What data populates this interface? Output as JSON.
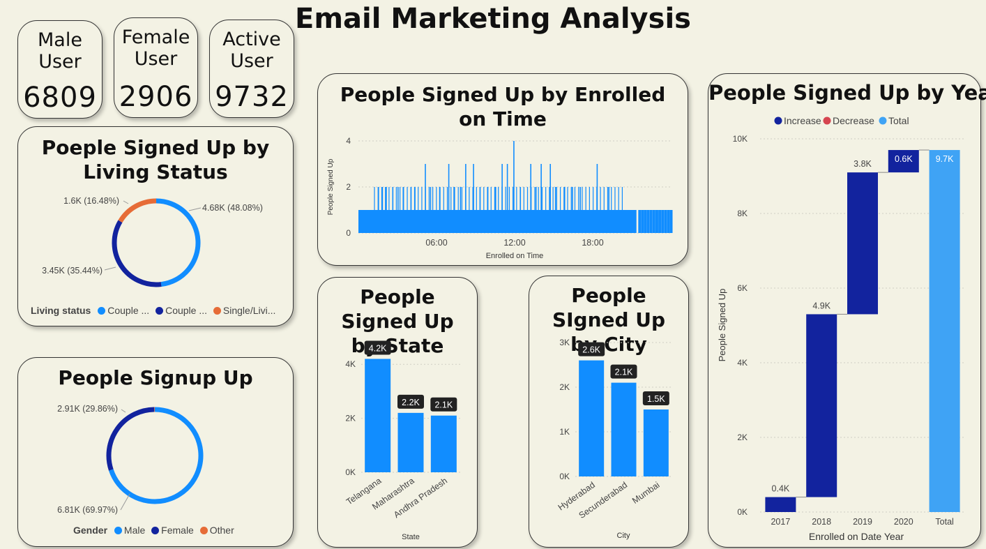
{
  "page": {
    "title": "Email Marketing Analysis"
  },
  "kpis": [
    {
      "label": "Male User",
      "value": "6809"
    },
    {
      "label": "Female User",
      "value": "2906"
    },
    {
      "label": "Active User",
      "value": "9732"
    }
  ],
  "colors": {
    "accent": "#118dff",
    "navy": "#12239e",
    "orange": "#e66c37",
    "red": "#d64550",
    "lightblue": "#3fa3f5",
    "background": "#f3f2e4"
  },
  "chart_data": [
    {
      "id": "living_status",
      "type": "pie",
      "title": "Poeple Signed Up by Living Status",
      "legend_title": "Living status",
      "legend_position": "bottom-left",
      "slices": [
        {
          "name": "Couple ...",
          "color": "#118dff",
          "value": 4680,
          "label": "4.68K (48.08%)",
          "percent": 48.08
        },
        {
          "name": "Couple ...",
          "color": "#12239e",
          "value": 3450,
          "label": "3.45K (35.44%)",
          "percent": 35.44
        },
        {
          "name": "Single/Livi...",
          "color": "#e66c37",
          "value": 1600,
          "label": "1.6K (16.48%)",
          "percent": 16.48
        }
      ]
    },
    {
      "id": "gender",
      "type": "pie",
      "title": "People Signup Up",
      "legend_title": "Gender",
      "legend_position": "bottom-left",
      "slices": [
        {
          "name": "Male",
          "color": "#118dff",
          "value": 6810,
          "label": "6.81K (69.97%)",
          "percent": 69.97
        },
        {
          "name": "Female",
          "color": "#12239e",
          "value": 2910,
          "label": "2.91K (29.86%)",
          "percent": 29.86
        },
        {
          "name": "Other",
          "color": "#e66c37",
          "value": 17,
          "label": "",
          "percent": 0.17
        }
      ]
    },
    {
      "id": "time",
      "type": "bar",
      "title": "People Signed Up by Enrolled on Time",
      "xlabel": "Enrolled on Time",
      "ylabel": "People Signed Up",
      "ylim": [
        0,
        4
      ],
      "yticks": [
        "0",
        "2",
        "4"
      ],
      "xticks": [
        "06:00",
        "12:00",
        "18:00"
      ],
      "x_range_hours": [
        0,
        24
      ],
      "spikes": [
        {
          "hour": 1.5,
          "value": 2
        },
        {
          "hour": 1.8,
          "value": 2
        },
        {
          "hour": 2.1,
          "value": 2
        },
        {
          "hour": 2.6,
          "value": 2
        },
        {
          "hour": 3.0,
          "value": 2
        },
        {
          "hour": 3.4,
          "value": 2
        },
        {
          "hour": 4.0,
          "value": 2
        },
        {
          "hour": 4.3,
          "value": 2
        },
        {
          "hour": 5.1,
          "value": 3
        },
        {
          "hour": 5.5,
          "value": 2
        },
        {
          "hour": 6.2,
          "value": 2
        },
        {
          "hour": 6.9,
          "value": 3
        },
        {
          "hour": 7.3,
          "value": 2
        },
        {
          "hour": 7.8,
          "value": 2
        },
        {
          "hour": 8.2,
          "value": 3
        },
        {
          "hour": 8.8,
          "value": 3
        },
        {
          "hour": 9.3,
          "value": 2
        },
        {
          "hour": 9.9,
          "value": 2
        },
        {
          "hour": 10.5,
          "value": 2
        },
        {
          "hour": 11.0,
          "value": 3
        },
        {
          "hour": 11.4,
          "value": 3
        },
        {
          "hour": 11.9,
          "value": 4
        },
        {
          "hour": 12.4,
          "value": 2
        },
        {
          "hour": 13.2,
          "value": 3
        },
        {
          "hour": 13.6,
          "value": 2
        },
        {
          "hour": 14.0,
          "value": 3
        },
        {
          "hour": 14.7,
          "value": 3
        },
        {
          "hour": 15.1,
          "value": 2
        },
        {
          "hour": 15.8,
          "value": 2
        },
        {
          "hour": 16.4,
          "value": 2
        },
        {
          "hour": 17.0,
          "value": 2
        },
        {
          "hour": 18.3,
          "value": 3
        },
        {
          "hour": 19.2,
          "value": 2
        }
      ]
    },
    {
      "id": "state",
      "type": "bar",
      "title": "People Signed Up by State",
      "xlabel": "State",
      "ylabel": "",
      "ylim": [
        0,
        4600
      ],
      "yticks": [
        {
          "value": 0,
          "label": "0K"
        },
        {
          "value": 2000,
          "label": "2K"
        },
        {
          "value": 4000,
          "label": "4K"
        }
      ],
      "categories": [
        "Telangana",
        "Maharashtra",
        "Andhra Pradesh"
      ],
      "values": [
        4200,
        2200,
        2100
      ],
      "labels": [
        "4.2K",
        "2.2K",
        "2.1K"
      ]
    },
    {
      "id": "city",
      "type": "bar",
      "title": "People SIgned Up by City",
      "xlabel": "City",
      "ylabel": "",
      "ylim": [
        0,
        3000
      ],
      "yticks": [
        {
          "value": 0,
          "label": "0K"
        },
        {
          "value": 1000,
          "label": "1K"
        },
        {
          "value": 2000,
          "label": "2K"
        },
        {
          "value": 3000,
          "label": "3K"
        }
      ],
      "categories": [
        "Hyderabad",
        "Secunderabad",
        "Mumbai"
      ],
      "values": [
        2600,
        2100,
        1500
      ],
      "labels": [
        "2.6K",
        "2.1K",
        "1.5K"
      ]
    },
    {
      "id": "year",
      "type": "bar",
      "subtype": "waterfall",
      "title": "People Signed Up by Year",
      "xlabel": "Enrolled on Date Year",
      "ylabel": "People Signed Up",
      "ylim": [
        0,
        10000
      ],
      "yticks": [
        {
          "value": 0,
          "label": "0K"
        },
        {
          "value": 2000,
          "label": "2K"
        },
        {
          "value": 4000,
          "label": "4K"
        },
        {
          "value": 6000,
          "label": "6K"
        },
        {
          "value": 8000,
          "label": "8K"
        },
        {
          "value": 10000,
          "label": "10K"
        }
      ],
      "legend": [
        {
          "name": "Increase",
          "color": "#12239e"
        },
        {
          "name": "Decrease",
          "color": "#d64550"
        },
        {
          "name": "Total",
          "color": "#3fa3f5"
        }
      ],
      "legend_position": "top",
      "categories": [
        "2017",
        "2018",
        "2019",
        "2020",
        "Total"
      ],
      "values": [
        400,
        4900,
        3800,
        600,
        9700
      ],
      "labels": [
        "0.4K",
        "4.9K",
        "3.8K",
        "0.6K",
        "9.7K"
      ]
    }
  ]
}
